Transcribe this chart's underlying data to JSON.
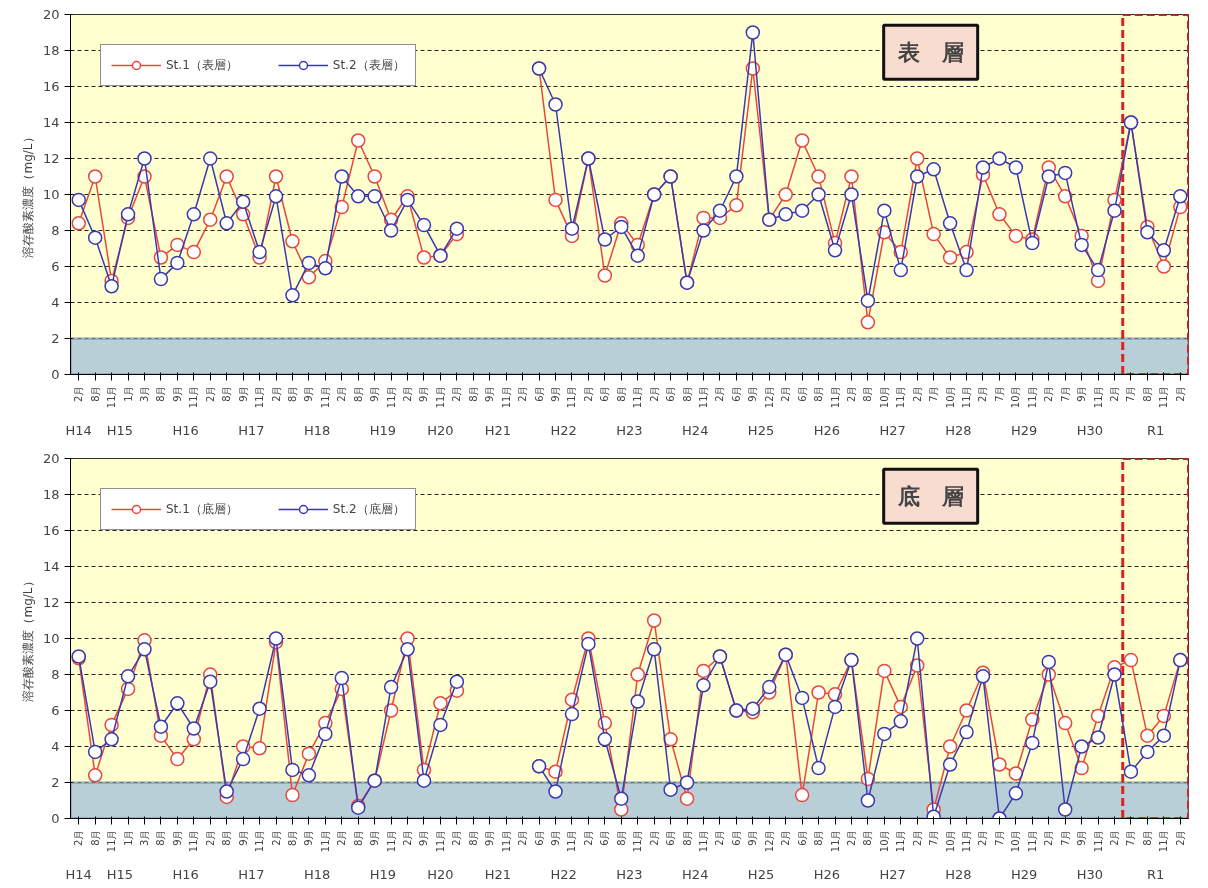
{
  "chart_data": [
    {
      "type": "line",
      "ylabel": "溶存酸素濃度（mg/L）",
      "annotations": [
        "表　層",
        "H14",
        "H15",
        "H16",
        "H17",
        "H18",
        "H19",
        "H20",
        "H21",
        "H22",
        "H23",
        "H24",
        "H25",
        "H26",
        "H27",
        "H28",
        "H29",
        "H30",
        "R1"
      ],
      "categories": [
        "2月",
        "8月",
        "11月",
        "1月",
        "3月",
        "8月",
        "9月",
        "11月",
        "2月",
        "8月",
        "9月",
        "11月",
        "2月",
        "8月",
        "9月",
        "11月",
        "2月",
        "8月",
        "9月",
        "11月",
        "2月",
        "9月",
        "11月",
        "2月",
        "8月",
        "9月",
        "11月",
        "2月",
        "6月",
        "9月",
        "11月",
        "2月",
        "6月",
        "8月",
        "11月",
        "2月",
        "6月",
        "8月",
        "11月",
        "2月",
        "6月",
        "9月",
        "12月",
        "2月",
        "6月",
        "8月",
        "11月",
        "2月",
        "8月",
        "10月",
        "11月",
        "2月",
        "7月",
        "10月",
        "11月",
        "2月",
        "7月",
        "10月",
        "11月",
        "2月",
        "7月",
        "9月",
        "11月",
        "2月",
        "7月",
        "8月",
        "11月",
        "2月"
      ],
      "series": [
        {
          "name": "St.1（表層）",
          "color": "#e8473c",
          "values": [
            8.4,
            11,
            5.2,
            8.7,
            11,
            6.5,
            7.2,
            6.8,
            8.6,
            11,
            8.9,
            6.5,
            11,
            7.4,
            5.4,
            6.3,
            9.3,
            13,
            11,
            8.6,
            9.9,
            6.5,
            6.6,
            7.8,
            null,
            null,
            null,
            null,
            17,
            9.7,
            7.7,
            12,
            5.5,
            8.4,
            7.2,
            10,
            11,
            5.1,
            8.7,
            8.7,
            9.4,
            17,
            8.6,
            10,
            13,
            11,
            7.3,
            11,
            2.9,
            7.9,
            6.8,
            12,
            7.8,
            6.5,
            6.8,
            11.1,
            8.9,
            7.7,
            7.5,
            11.5,
            9.9,
            7.7,
            5.2,
            9.7,
            14,
            8.2,
            6.0,
            9.3
          ]
        },
        {
          "name": "St.2（表層）",
          "color": "#3a3ab0",
          "values": [
            9.7,
            7.6,
            4.9,
            8.9,
            12,
            5.3,
            6.2,
            8.9,
            12,
            8.4,
            9.6,
            6.8,
            9.9,
            4.4,
            6.2,
            5.9,
            11,
            9.9,
            9.9,
            8.0,
            9.7,
            8.3,
            6.6,
            8.1,
            null,
            null,
            null,
            null,
            17,
            15,
            8.1,
            12,
            7.5,
            8.2,
            6.6,
            10,
            11,
            5.1,
            8.0,
            9.1,
            11,
            19,
            8.6,
            8.9,
            9.1,
            10,
            6.9,
            10,
            4.1,
            9.1,
            5.8,
            11,
            11.4,
            8.4,
            5.8,
            11.5,
            12,
            11.5,
            7.3,
            11,
            11.2,
            7.2,
            5.8,
            9.1,
            14,
            7.9,
            6.9,
            9.9
          ]
        }
      ],
      "ylim": [
        0,
        20
      ],
      "yticks": [
        0,
        2,
        4,
        6,
        8,
        10,
        12,
        14,
        16,
        18,
        20
      ],
      "grid": "y",
      "legend": "top left",
      "marker": "circle",
      "bands": [
        {
          "axis": "y",
          "from": 0,
          "to": 2,
          "color": "#b9cfd8"
        }
      ]
    },
    {
      "type": "line",
      "ylabel": "溶存酸素濃度（mg/L）",
      "annotations": [
        "底　層",
        "H14",
        "H15",
        "H16",
        "H17",
        "H18",
        "H19",
        "H20",
        "H21",
        "H22",
        "H23",
        "H24",
        "H25",
        "H26",
        "H27",
        "H28",
        "H29",
        "H30",
        "R1"
      ],
      "categories": [
        "2月",
        "8月",
        "11月",
        "1月",
        "3月",
        "8月",
        "9月",
        "11月",
        "2月",
        "8月",
        "9月",
        "11月",
        "2月",
        "8月",
        "9月",
        "11月",
        "2月",
        "8月",
        "9月",
        "11月",
        "2月",
        "9月",
        "11月",
        "2月",
        "8月",
        "9月",
        "11月",
        "2月",
        "6月",
        "9月",
        "11月",
        "2月",
        "6月",
        "8月",
        "11月",
        "2月",
        "6月",
        "8月",
        "11月",
        "2月",
        "6月",
        "9月",
        "12月",
        "2月",
        "6月",
        "8月",
        "11月",
        "2月",
        "8月",
        "10月",
        "11月",
        "2月",
        "7月",
        "10月",
        "11月",
        "2月",
        "7月",
        "10月",
        "11月",
        "2月",
        "7月",
        "9月",
        "11月",
        "2月",
        "7月",
        "8月",
        "11月",
        "2月"
      ],
      "series": [
        {
          "name": "St.1（底層）",
          "color": "#e8473c",
          "values": [
            8.9,
            2.4,
            5.2,
            7.2,
            9.9,
            4.6,
            3.3,
            4.4,
            8.0,
            1.2,
            4.0,
            3.9,
            9.8,
            1.3,
            3.6,
            5.3,
            7.2,
            0.7,
            2.1,
            6.0,
            10,
            2.7,
            6.4,
            7.1,
            null,
            null,
            null,
            null,
            2.9,
            2.6,
            6.6,
            10,
            5.3,
            0.5,
            8.0,
            11,
            4.4,
            1.1,
            8.2,
            9.0,
            6.0,
            5.9,
            7.0,
            9.1,
            1.3,
            7.0,
            6.9,
            8.8,
            2.2,
            8.2,
            6.2,
            8.5,
            0.5,
            4.0,
            6.0,
            8.1,
            3.0,
            2.5,
            5.5,
            8.0,
            5.3,
            2.8,
            5.7,
            8.4,
            8.8,
            4.6,
            5.7,
            8.8
          ]
        },
        {
          "name": "St.2（底層）",
          "color": "#3a3ab0",
          "values": [
            9.0,
            3.7,
            4.4,
            7.9,
            9.4,
            5.1,
            6.4,
            5.0,
            7.6,
            1.5,
            3.3,
            6.1,
            10,
            2.7,
            2.4,
            4.7,
            7.8,
            0.6,
            2.1,
            7.3,
            9.4,
            2.1,
            5.2,
            7.6,
            null,
            null,
            null,
            null,
            2.9,
            1.5,
            5.8,
            9.7,
            4.4,
            1.1,
            6.5,
            9.4,
            1.6,
            2.0,
            7.4,
            9.0,
            6.0,
            6.1,
            7.3,
            9.1,
            6.7,
            2.8,
            6.2,
            8.8,
            1.0,
            4.7,
            5.4,
            10,
            0.1,
            3.0,
            4.8,
            7.9,
            0,
            1.4,
            4.2,
            8.7,
            0.5,
            4.0,
            4.5,
            8.0,
            2.6,
            3.7,
            4.6,
            8.8
          ]
        }
      ],
      "ylim": [
        0,
        20
      ],
      "yticks": [
        0,
        2,
        4,
        6,
        8,
        10,
        12,
        14,
        16,
        18,
        20
      ],
      "grid": "y",
      "legend": "top left",
      "marker": "circle",
      "bands": [
        {
          "axis": "y",
          "from": 0,
          "to": 2,
          "color": "#b9cfd8"
        }
      ]
    }
  ]
}
